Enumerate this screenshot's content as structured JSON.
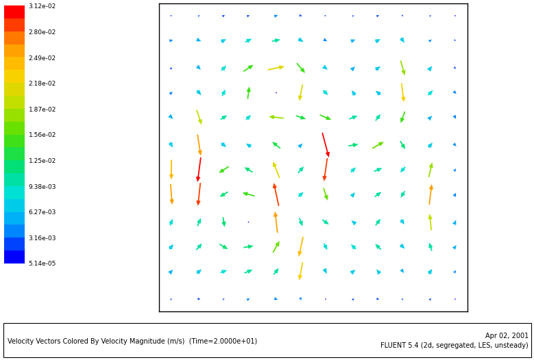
{
  "chart_data": {
    "type": "quiver",
    "title": "Velocity Vectors Colored By Velocity Magnitude (m/s)",
    "subtitle": "(Time=2.0000e+01)",
    "annotations": [
      "Apr 02, 2001",
      "FLUENT 5.4 (2d, segregated, LES, unsteady)"
    ],
    "tick_labels": false,
    "xlim": [
      0,
      1
    ],
    "ylim": [
      0,
      1
    ],
    "x": [
      0.04,
      0.13,
      0.21,
      0.29,
      0.38,
      0.46,
      0.54,
      0.63,
      0.71,
      0.79,
      0.88,
      0.96
    ],
    "y": [
      0.04,
      0.13,
      0.21,
      0.29,
      0.38,
      0.46,
      0.54,
      0.63,
      0.71,
      0.79,
      0.88,
      0.96
    ],
    "u": [
      [
        0.002,
        0.003,
        0.002,
        0.003,
        0.004,
        0.002,
        0.001,
        0.002,
        0.003,
        0.002,
        0.002,
        0.001
      ],
      [
        0.004,
        0.006,
        0.008,
        0.01,
        0.006,
        -0.004,
        0.003,
        0.005,
        -0.004,
        0.003,
        0.004,
        0.002
      ],
      [
        0.005,
        0.007,
        0.01,
        0.012,
        0.008,
        -0.005,
        0.004,
        -0.006,
        -0.007,
        0.005,
        -0.003,
        0.003
      ],
      [
        0.003,
        0.004,
        0.002,
        0.0,
        -0.003,
        0.004,
        0.008,
        -0.005,
        0.006,
        0.004,
        -0.002,
        0.002
      ],
      [
        0.002,
        -0.003,
        -0.01,
        -0.015,
        -0.006,
        0.006,
        0.005,
        0.004,
        0.008,
        -0.005,
        0.003,
        0.002
      ],
      [
        0.0,
        -0.004,
        -0.012,
        -0.01,
        -0.008,
        0.007,
        -0.004,
        0.006,
        0.01,
        -0.006,
        0.004,
        0.002
      ],
      [
        0.003,
        0.004,
        0.006,
        -0.006,
        -0.01,
        0.004,
        0.008,
        0.012,
        0.014,
        0.006,
        0.005,
        0.003
      ],
      [
        0.004,
        0.006,
        0.008,
        0.006,
        -0.018,
        0.012,
        0.014,
        0.01,
        0.006,
        -0.005,
        0.004,
        0.002
      ],
      [
        0.003,
        0.005,
        0.004,
        0.002,
        0.0,
        -0.004,
        0.006,
        -0.004,
        -0.006,
        0.003,
        0.006,
        0.003
      ],
      [
        0.002,
        0.004,
        0.006,
        0.012,
        0.02,
        0.01,
        0.005,
        0.004,
        0.006,
        0.005,
        0.004,
        0.002
      ],
      [
        0.004,
        0.005,
        0.006,
        0.008,
        0.01,
        0.006,
        0.004,
        0.005,
        0.006,
        0.004,
        0.003,
        0.002
      ],
      [
        0.002,
        0.002,
        0.003,
        0.003,
        0.004,
        0.003,
        0.002,
        0.002,
        0.003,
        0.002,
        0.002,
        0.001
      ]
    ],
    "v": [
      [
        0.001,
        -0.001,
        0.001,
        0.002,
        -0.001,
        -0.003,
        0.001,
        0.002,
        -0.001,
        0.001,
        0.002,
        -0.001
      ],
      [
        0.004,
        0.005,
        0.003,
        0.004,
        0.008,
        -0.022,
        -0.006,
        0.004,
        0.005,
        -0.004,
        0.006,
        0.003
      ],
      [
        0.006,
        0.008,
        -0.006,
        0.002,
        0.014,
        -0.024,
        -0.008,
        0.006,
        0.007,
        -0.005,
        0.01,
        0.004
      ],
      [
        0.008,
        0.01,
        -0.012,
        0.0,
        0.026,
        -0.01,
        -0.006,
        0.004,
        0.008,
        -0.006,
        0.02,
        0.005
      ],
      [
        -0.025,
        -0.028,
        -0.006,
        0.004,
        0.028,
        0.006,
        -0.015,
        0.005,
        0.006,
        -0.008,
        0.025,
        0.004
      ],
      [
        -0.024,
        -0.03,
        -0.008,
        0.006,
        0.02,
        0.008,
        -0.028,
        0.006,
        0.004,
        -0.007,
        0.018,
        0.003
      ],
      [
        -0.006,
        -0.026,
        -0.005,
        0.004,
        0.008,
        0.004,
        -0.03,
        0.002,
        0.008,
        -0.01,
        0.006,
        -0.003
      ],
      [
        -0.004,
        -0.018,
        0.005,
        0.006,
        0.002,
        -0.004,
        -0.006,
        0.004,
        0.008,
        -0.014,
        0.004,
        -0.004
      ],
      [
        0.003,
        -0.006,
        0.008,
        0.015,
        0.0,
        -0.02,
        -0.006,
        0.006,
        0.005,
        -0.023,
        0.006,
        -0.003
      ],
      [
        0.002,
        -0.004,
        0.006,
        0.008,
        0.004,
        -0.012,
        -0.004,
        0.004,
        0.004,
        -0.018,
        0.005,
        -0.002
      ],
      [
        0.001,
        -0.002,
        0.003,
        0.004,
        0.002,
        -0.004,
        -0.002,
        0.002,
        0.003,
        -0.006,
        0.002,
        -0.001
      ],
      [
        0.0,
        0.001,
        0.001,
        0.001,
        0.001,
        -0.001,
        0.0,
        0.001,
        0.001,
        -0.001,
        0.001,
        0.0
      ]
    ],
    "colorbar_range": [
      5.14e-05,
      0.0312
    ],
    "colorbar_ticks": [
      {
        "value": 0.0312,
        "label": "3.12e-02"
      },
      {
        "value": 0.028,
        "label": "2.80e-02"
      },
      {
        "value": 0.0249,
        "label": "2.49e-02"
      },
      {
        "value": 0.0218,
        "label": "2.18e-02"
      },
      {
        "value": 0.0187,
        "label": "1.87e-02"
      },
      {
        "value": 0.0156,
        "label": "1.56e-02"
      },
      {
        "value": 0.0125,
        "label": "1.25e-02"
      },
      {
        "value": 0.00938,
        "label": "9.38e-03"
      },
      {
        "value": 0.00627,
        "label": "6.27e-03"
      },
      {
        "value": 0.00316,
        "label": "3.16e-03"
      },
      {
        "value": 5.14e-05,
        "label": "5.14e-05"
      }
    ]
  }
}
